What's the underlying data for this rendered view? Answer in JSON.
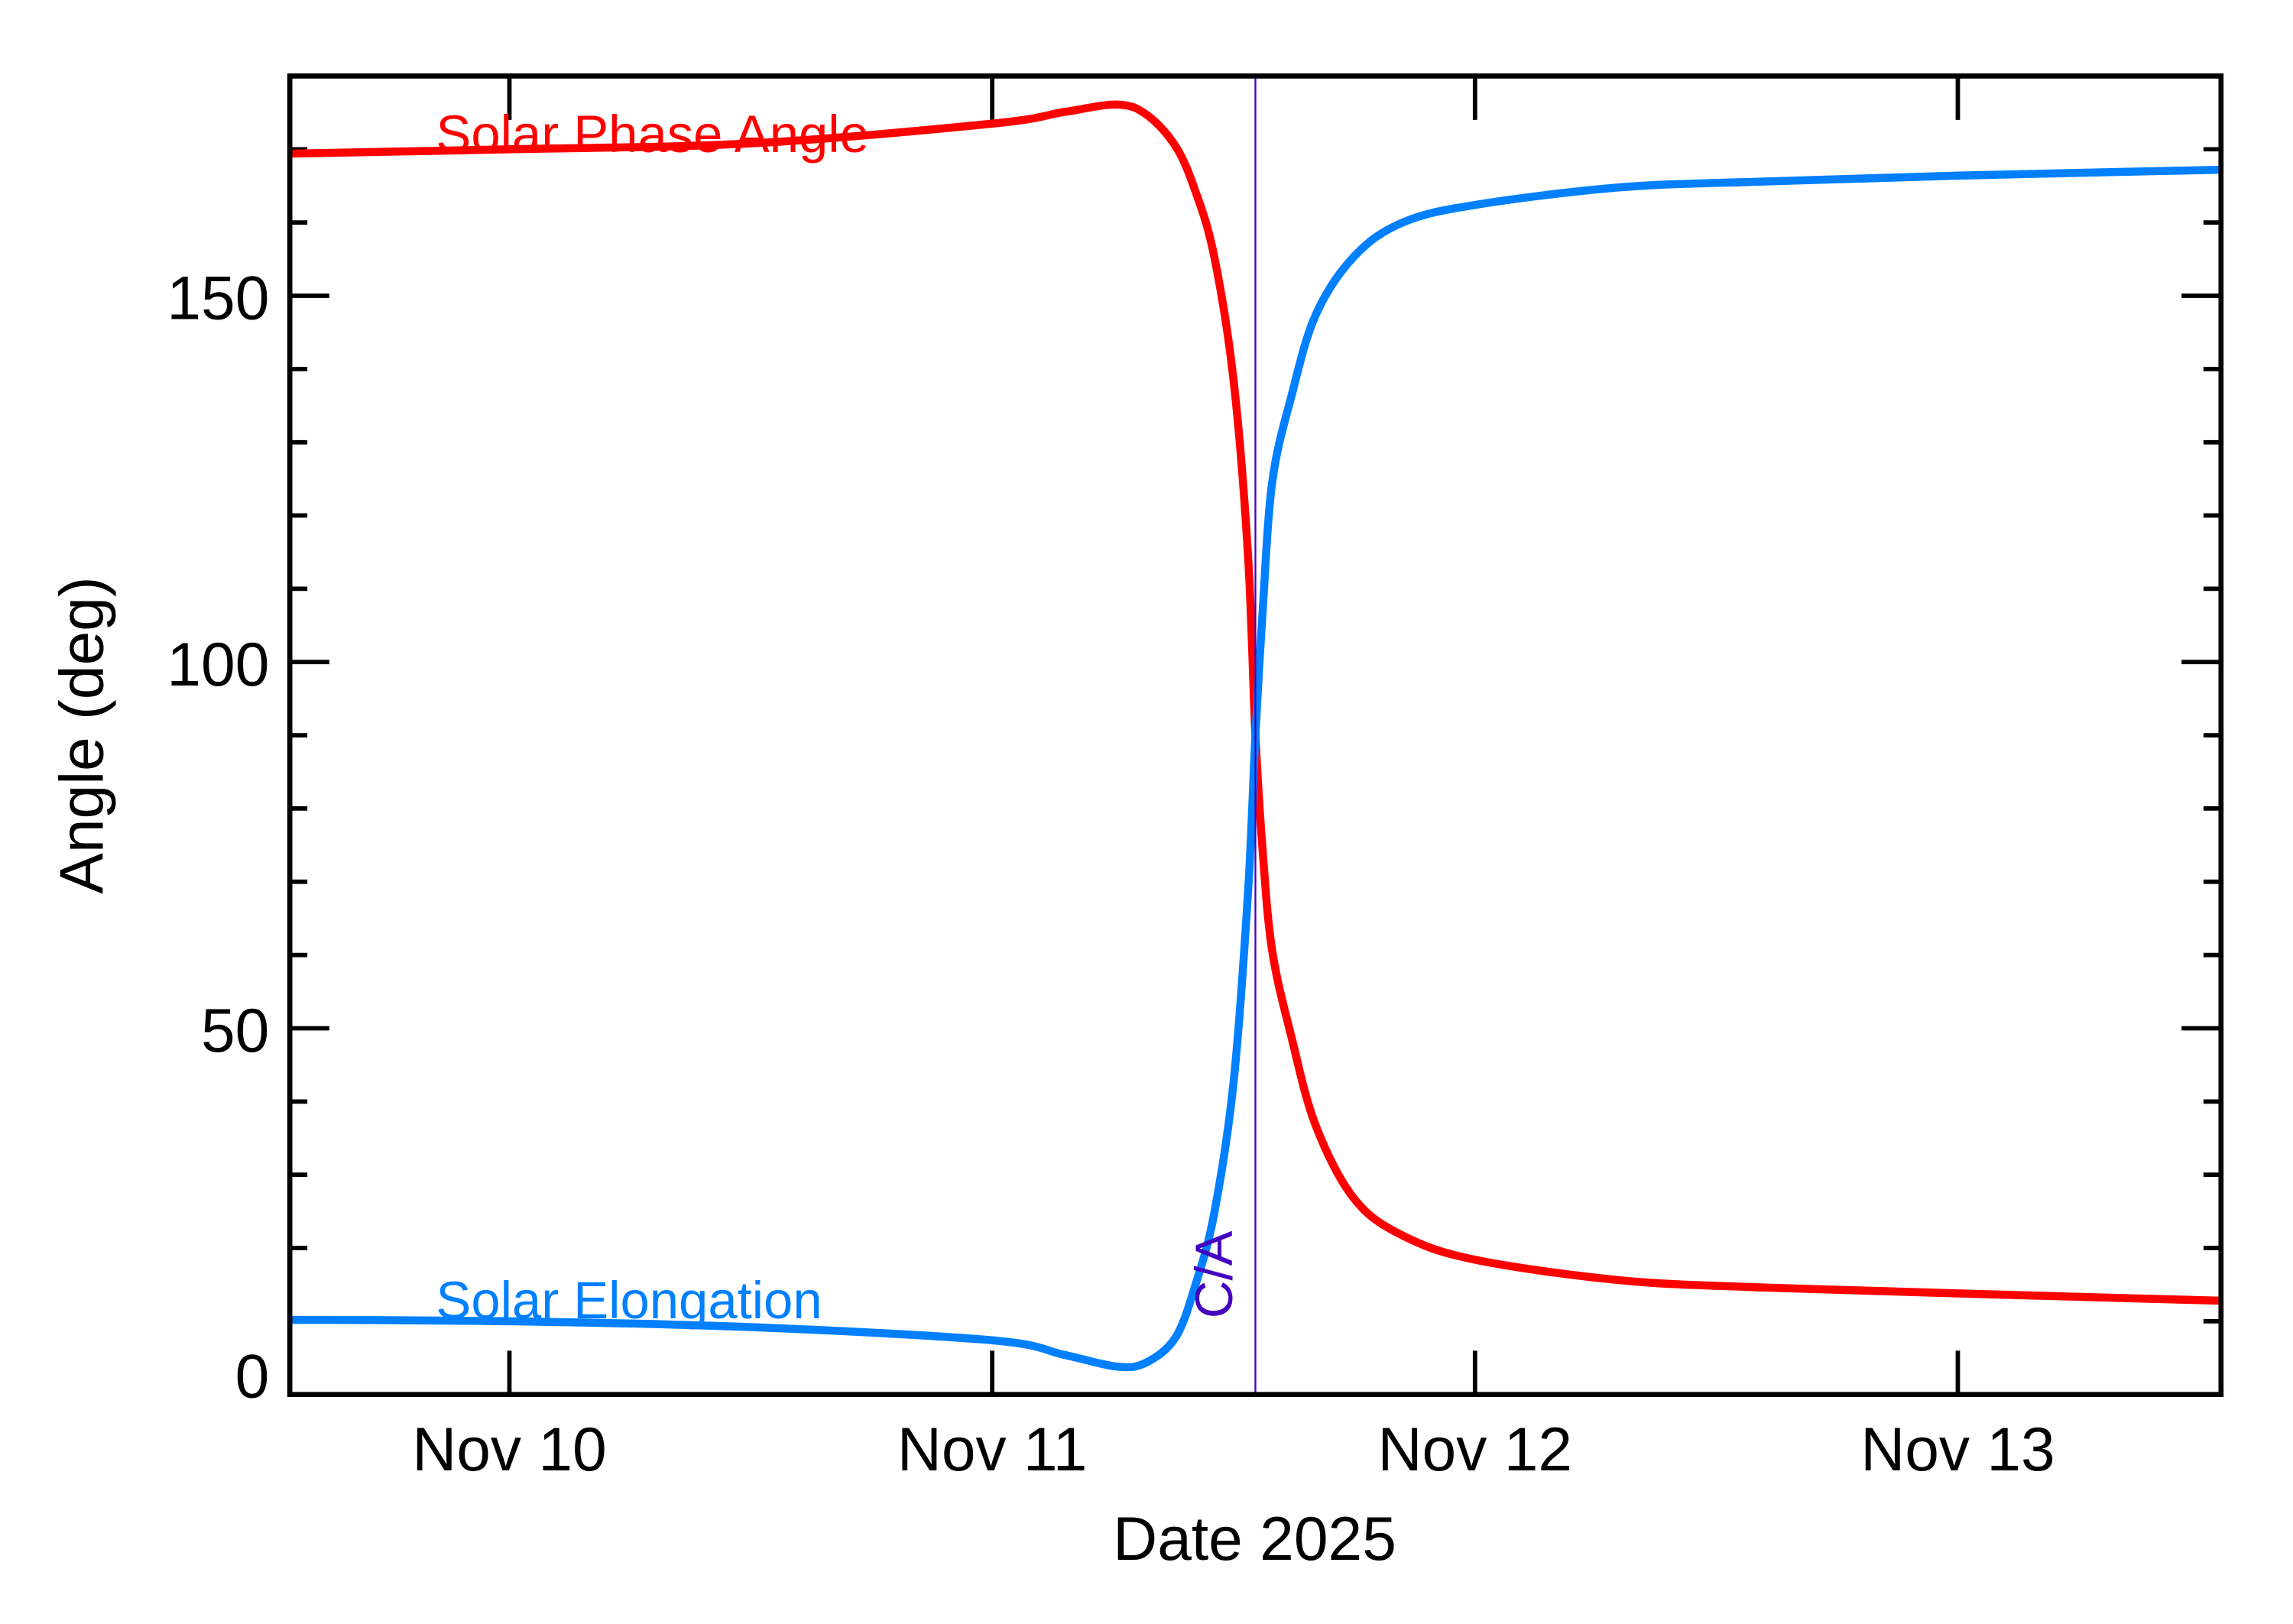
{
  "chart_data": {
    "type": "line",
    "xlabel": "Date 2025",
    "ylabel": "Angle (deg)",
    "xlim": [
      "2025-11-09T13:05",
      "2025-11-13T13:05"
    ],
    "ylim": [
      0,
      180
    ],
    "x_ticks": [
      {
        "date": "2025-11-10T00:00",
        "label": "Nov 10"
      },
      {
        "date": "2025-11-11T00:00",
        "label": "Nov 11"
      },
      {
        "date": "2025-11-12T00:00",
        "label": "Nov 12"
      },
      {
        "date": "2025-11-13T00:00",
        "label": "Nov 13"
      }
    ],
    "y_ticks": [
      {
        "value": 0,
        "label": "0"
      },
      {
        "value": 50,
        "label": "50"
      },
      {
        "value": 100,
        "label": "100"
      },
      {
        "value": 150,
        "label": "150"
      }
    ],
    "y_minor_step": 10,
    "grid": false,
    "closest_approach": {
      "date": "2025-11-11T13:05",
      "label": "C/A",
      "color": "#4400C0"
    },
    "x": [
      "2025-11-09T13:05",
      "2025-11-10T00:00",
      "2025-11-10T12:00",
      "2025-11-11T00:00",
      "2025-11-11T03:36",
      "2025-11-11T06:14",
      "2025-11-11T07:41",
      "2025-11-11T09:07",
      "2025-11-11T10:05",
      "2025-11-11T11:02",
      "2025-11-11T12:00",
      "2025-11-11T12:43",
      "2025-11-11T13:05",
      "2025-11-11T13:26",
      "2025-11-11T13:55",
      "2025-11-11T14:53",
      "2025-11-11T16:05",
      "2025-11-11T18:00",
      "2025-11-11T20:24",
      "2025-11-12T00:00",
      "2025-11-12T07:12",
      "2025-11-12T14:24",
      "2025-11-13T00:00",
      "2025-11-13T13:05"
    ],
    "series": [
      {
        "name": "Solar Phase Angle",
        "color": "#FF0000",
        "values": [
          169.4,
          170.0,
          170.8,
          173.5,
          175.1,
          176.1,
          174.7,
          170.4,
          164.4,
          155.4,
          138.4,
          114.5,
          90.0,
          74.6,
          60.6,
          48.7,
          36.7,
          26.7,
          21.7,
          18.4,
          15.6,
          14.6,
          13.8,
          12.8
        ]
      },
      {
        "name": "Solar Elongation",
        "color": "#0080FF",
        "values": [
          10.2,
          10.0,
          9.2,
          7.4,
          5.4,
          3.8,
          4.4,
          7.8,
          14.8,
          24.7,
          42.7,
          68.6,
          90.0,
          106.5,
          124.5,
          136.4,
          147.4,
          155.4,
          160.0,
          162.4,
          164.8,
          165.6,
          166.4,
          167.2
        ]
      }
    ]
  }
}
